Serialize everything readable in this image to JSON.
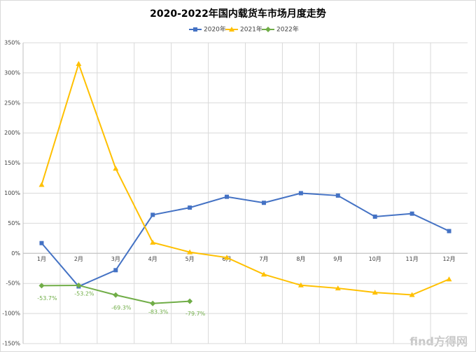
{
  "chart_data": {
    "type": "line",
    "title": "2020-2022年国内载货车市场月度走势",
    "categories": [
      "1月",
      "2月",
      "3月",
      "4月",
      "5月",
      "6月",
      "7月",
      "8月",
      "9月",
      "10月",
      "11月",
      "12月"
    ],
    "series": [
      {
        "name": "2020年",
        "color": "#4472c4",
        "marker": "square",
        "values": [
          17,
          -55,
          -28,
          64,
          76,
          94,
          84,
          100,
          96,
          61,
          66,
          37
        ]
      },
      {
        "name": "2021年",
        "color": "#ffc000",
        "marker": "triangle",
        "values": [
          114,
          315,
          141,
          18,
          2,
          -7,
          -35,
          -53,
          -58,
          -65,
          -69,
          -43
        ]
      },
      {
        "name": "2022年",
        "color": "#70ad47",
        "marker": "diamond",
        "values": [
          -53.7,
          -53.2,
          -69.3,
          -83.3,
          -79.7,
          null,
          null,
          null,
          null,
          null,
          null,
          null
        ],
        "value_labels": [
          "-53.7%",
          "-53.2%",
          "-69.3%",
          "-83.3%",
          "-79.7%",
          null,
          null,
          null,
          null,
          null,
          null,
          null
        ]
      }
    ],
    "ylim": [
      -150,
      350
    ],
    "yticks": [
      {
        "value": -150,
        "label": "-150%"
      },
      {
        "value": -100,
        "label": "-100%"
      },
      {
        "value": -50,
        "label": "-50%"
      },
      {
        "value": 0,
        "label": "0%"
      },
      {
        "value": 50,
        "label": "50%"
      },
      {
        "value": 100,
        "label": "100%"
      },
      {
        "value": 150,
        "label": "150%"
      },
      {
        "value": 200,
        "label": "200%"
      },
      {
        "value": 250,
        "label": "250%"
      },
      {
        "value": 300,
        "label": "300%"
      },
      {
        "value": 350,
        "label": "350%"
      }
    ],
    "grid": true,
    "legend": "top",
    "watermark": "find方得网"
  }
}
